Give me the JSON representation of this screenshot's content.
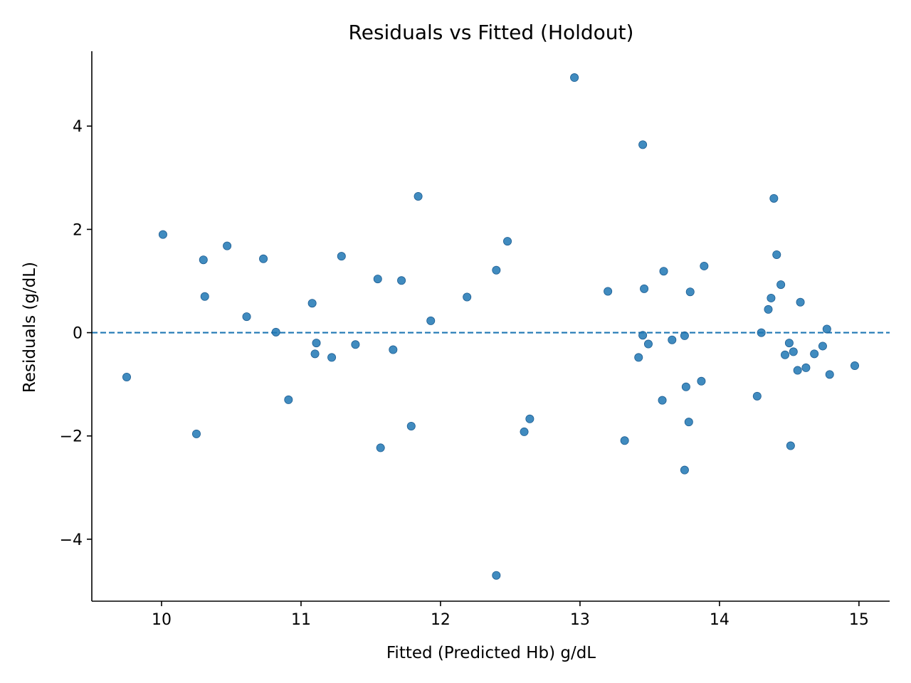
{
  "chart_data": {
    "type": "scatter",
    "title": "Residuals vs Fitted (Holdout)",
    "xlabel": "Fitted (Predicted Hb) g/dL",
    "ylabel": "Residuals (g/dL)",
    "xlim": [
      9.5,
      15.22
    ],
    "ylim": [
      -5.2,
      5.45
    ],
    "xticks": [
      10,
      11,
      12,
      13,
      14,
      15
    ],
    "xtick_labels": [
      "10",
      "11",
      "12",
      "13",
      "14",
      "15"
    ],
    "yticks": [
      -4,
      -2,
      0,
      2,
      4
    ],
    "ytick_labels": [
      "−4",
      "−2",
      "0",
      "2",
      "4"
    ],
    "reference_line": {
      "y": 0,
      "style": "dashed",
      "color": "#1f77b4"
    },
    "point_color": "#1f77b4",
    "grid": false,
    "points": [
      {
        "x": 9.75,
        "y": -0.86
      },
      {
        "x": 10.01,
        "y": 1.9
      },
      {
        "x": 10.25,
        "y": -1.96
      },
      {
        "x": 10.3,
        "y": 1.41
      },
      {
        "x": 10.31,
        "y": 0.7
      },
      {
        "x": 10.47,
        "y": 1.68
      },
      {
        "x": 10.61,
        "y": 0.31
      },
      {
        "x": 10.73,
        "y": 1.43
      },
      {
        "x": 10.82,
        "y": 0.01
      },
      {
        "x": 10.91,
        "y": -1.3
      },
      {
        "x": 11.08,
        "y": 0.57
      },
      {
        "x": 11.1,
        "y": -0.41
      },
      {
        "x": 11.11,
        "y": -0.2
      },
      {
        "x": 11.22,
        "y": -0.48
      },
      {
        "x": 11.29,
        "y": 1.48
      },
      {
        "x": 11.39,
        "y": -0.23
      },
      {
        "x": 11.55,
        "y": 1.04
      },
      {
        "x": 11.57,
        "y": -2.23
      },
      {
        "x": 11.66,
        "y": -0.33
      },
      {
        "x": 11.72,
        "y": 1.01
      },
      {
        "x": 11.79,
        "y": -1.81
      },
      {
        "x": 11.84,
        "y": 2.64
      },
      {
        "x": 11.93,
        "y": 0.23
      },
      {
        "x": 12.19,
        "y": 0.69
      },
      {
        "x": 12.4,
        "y": 1.21
      },
      {
        "x": 12.4,
        "y": -4.7
      },
      {
        "x": 12.48,
        "y": 1.77
      },
      {
        "x": 12.6,
        "y": -1.92
      },
      {
        "x": 12.64,
        "y": -1.67
      },
      {
        "x": 12.96,
        "y": 4.94
      },
      {
        "x": 13.2,
        "y": 0.8
      },
      {
        "x": 13.32,
        "y": -2.09
      },
      {
        "x": 13.42,
        "y": -0.48
      },
      {
        "x": 13.45,
        "y": 3.64
      },
      {
        "x": 13.45,
        "y": -0.05
      },
      {
        "x": 13.46,
        "y": 0.85
      },
      {
        "x": 13.49,
        "y": -0.22
      },
      {
        "x": 13.59,
        "y": -1.31
      },
      {
        "x": 13.6,
        "y": 1.19
      },
      {
        "x": 13.66,
        "y": -0.14
      },
      {
        "x": 13.75,
        "y": -0.06
      },
      {
        "x": 13.75,
        "y": -2.66
      },
      {
        "x": 13.76,
        "y": -1.05
      },
      {
        "x": 13.78,
        "y": -1.73
      },
      {
        "x": 13.79,
        "y": 0.79
      },
      {
        "x": 13.87,
        "y": -0.94
      },
      {
        "x": 13.89,
        "y": 1.29
      },
      {
        "x": 14.27,
        "y": -1.23
      },
      {
        "x": 14.3,
        "y": 0.0
      },
      {
        "x": 14.35,
        "y": 0.45
      },
      {
        "x": 14.37,
        "y": 0.67
      },
      {
        "x": 14.39,
        "y": 2.6
      },
      {
        "x": 14.41,
        "y": 1.51
      },
      {
        "x": 14.44,
        "y": 0.93
      },
      {
        "x": 14.47,
        "y": -0.43
      },
      {
        "x": 14.5,
        "y": -0.2
      },
      {
        "x": 14.51,
        "y": -2.19
      },
      {
        "x": 14.53,
        "y": -0.37
      },
      {
        "x": 14.56,
        "y": -0.73
      },
      {
        "x": 14.58,
        "y": 0.59
      },
      {
        "x": 14.62,
        "y": -0.68
      },
      {
        "x": 14.68,
        "y": -0.41
      },
      {
        "x": 14.74,
        "y": -0.26
      },
      {
        "x": 14.77,
        "y": 0.07
      },
      {
        "x": 14.79,
        "y": -0.81
      },
      {
        "x": 14.97,
        "y": -0.64
      }
    ]
  }
}
